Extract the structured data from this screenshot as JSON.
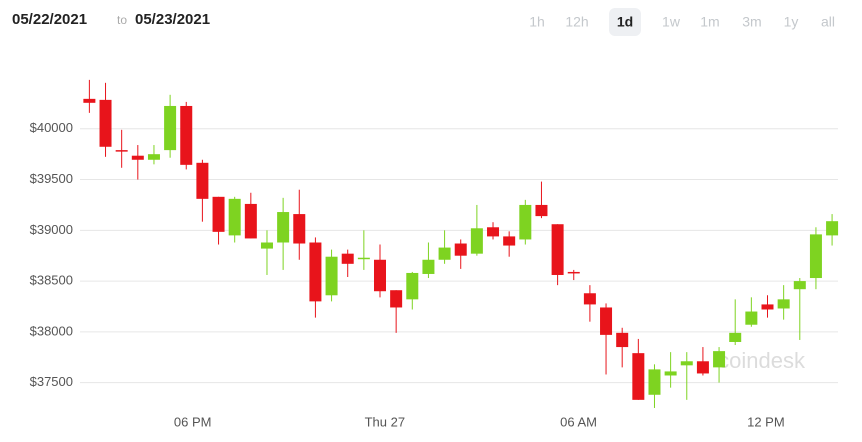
{
  "header": {
    "start": "05/22/2021",
    "separator": "to",
    "end": "05/23/2021",
    "ranges": [
      "1h",
      "12h",
      "1d",
      "1w",
      "1m",
      "3m",
      "1y",
      "all"
    ],
    "selected_range_index": 2
  },
  "chart_data": {
    "type": "candlestick",
    "watermark": "coindesk",
    "x": [
      0,
      1,
      2,
      3,
      4,
      5,
      6,
      7,
      8,
      9,
      10,
      11,
      12,
      13,
      14,
      15,
      16,
      17,
      18,
      19,
      20,
      21,
      22,
      23,
      24,
      25,
      26,
      27,
      28,
      29,
      30,
      31,
      32,
      33,
      34,
      35,
      36,
      37,
      38,
      39,
      40,
      41,
      42,
      43,
      44,
      45,
      46
    ],
    "open": [
      40295,
      40285,
      39790,
      39735,
      39695,
      39790,
      40225,
      39665,
      39330,
      38950,
      39260,
      38820,
      38880,
      39160,
      38880,
      38360,
      38770,
      38720,
      38710,
      38410,
      38320,
      38570,
      38710,
      38870,
      38770,
      39030,
      38940,
      38910,
      39250,
      39060,
      38590,
      38380,
      38240,
      37990,
      37790,
      37380,
      37570,
      37670,
      37710,
      37650,
      37900,
      38070,
      38270,
      38230,
      38420,
      38530,
      38950
    ],
    "high": [
      40482,
      40453,
      39990,
      39840,
      39840,
      40335,
      40265,
      39695,
      39330,
      39330,
      39370,
      39000,
      39320,
      39400,
      38930,
      38810,
      38810,
      39000,
      38860,
      38410,
      38590,
      38880,
      39000,
      38910,
      39250,
      39080,
      38990,
      39300,
      39480,
      39060,
      38610,
      38460,
      38280,
      38040,
      37930,
      37680,
      37800,
      37800,
      37850,
      37850,
      38320,
      38340,
      38360,
      38460,
      38530,
      39030,
      39160
    ],
    "low": [
      40157,
      39724,
      39616,
      39500,
      39650,
      39715,
      39600,
      39085,
      38860,
      38880,
      38920,
      38560,
      38610,
      38710,
      38140,
      38300,
      38540,
      38610,
      38340,
      37990,
      38220,
      38530,
      38670,
      38620,
      38750,
      38910,
      38740,
      38860,
      39120,
      38460,
      38510,
      38100,
      37580,
      37650,
      37330,
      37250,
      37450,
      37330,
      37570,
      37500,
      37870,
      38050,
      38140,
      38120,
      37920,
      38420,
      38850
    ],
    "close": [
      40256,
      39823,
      39780,
      39695,
      39750,
      40225,
      39645,
      39310,
      38985,
      39310,
      38920,
      38880,
      39180,
      38870,
      38300,
      38740,
      38670,
      38730,
      38400,
      38240,
      38580,
      38710,
      38830,
      38750,
      39020,
      38940,
      38850,
      39250,
      39140,
      38560,
      38580,
      38270,
      37970,
      37850,
      37330,
      37630,
      37610,
      37710,
      37590,
      37810,
      37990,
      38200,
      38220,
      38320,
      38500,
      38960,
      39090
    ],
    "up_color": "#7ed321",
    "down_color": "#e8141b",
    "xlim": [
      -1.2,
      46.8
    ],
    "xticks": [
      {
        "value": 6.4,
        "label": "06 PM"
      },
      {
        "value": 18.3,
        "label": "Thu 27"
      },
      {
        "value": 30.3,
        "label": "06 AM"
      },
      {
        "value": 41.9,
        "label": "12 PM"
      }
    ],
    "ylim": [
      37230,
      40530
    ],
    "yticks": [
      {
        "value": 37500,
        "label": "$37500"
      },
      {
        "value": 38000,
        "label": "$38000"
      },
      {
        "value": 38500,
        "label": "$38500"
      },
      {
        "value": 39000,
        "label": "$39000"
      },
      {
        "value": 39500,
        "label": "$39500"
      },
      {
        "value": 40000,
        "label": "$40000"
      }
    ],
    "grid": true
  }
}
